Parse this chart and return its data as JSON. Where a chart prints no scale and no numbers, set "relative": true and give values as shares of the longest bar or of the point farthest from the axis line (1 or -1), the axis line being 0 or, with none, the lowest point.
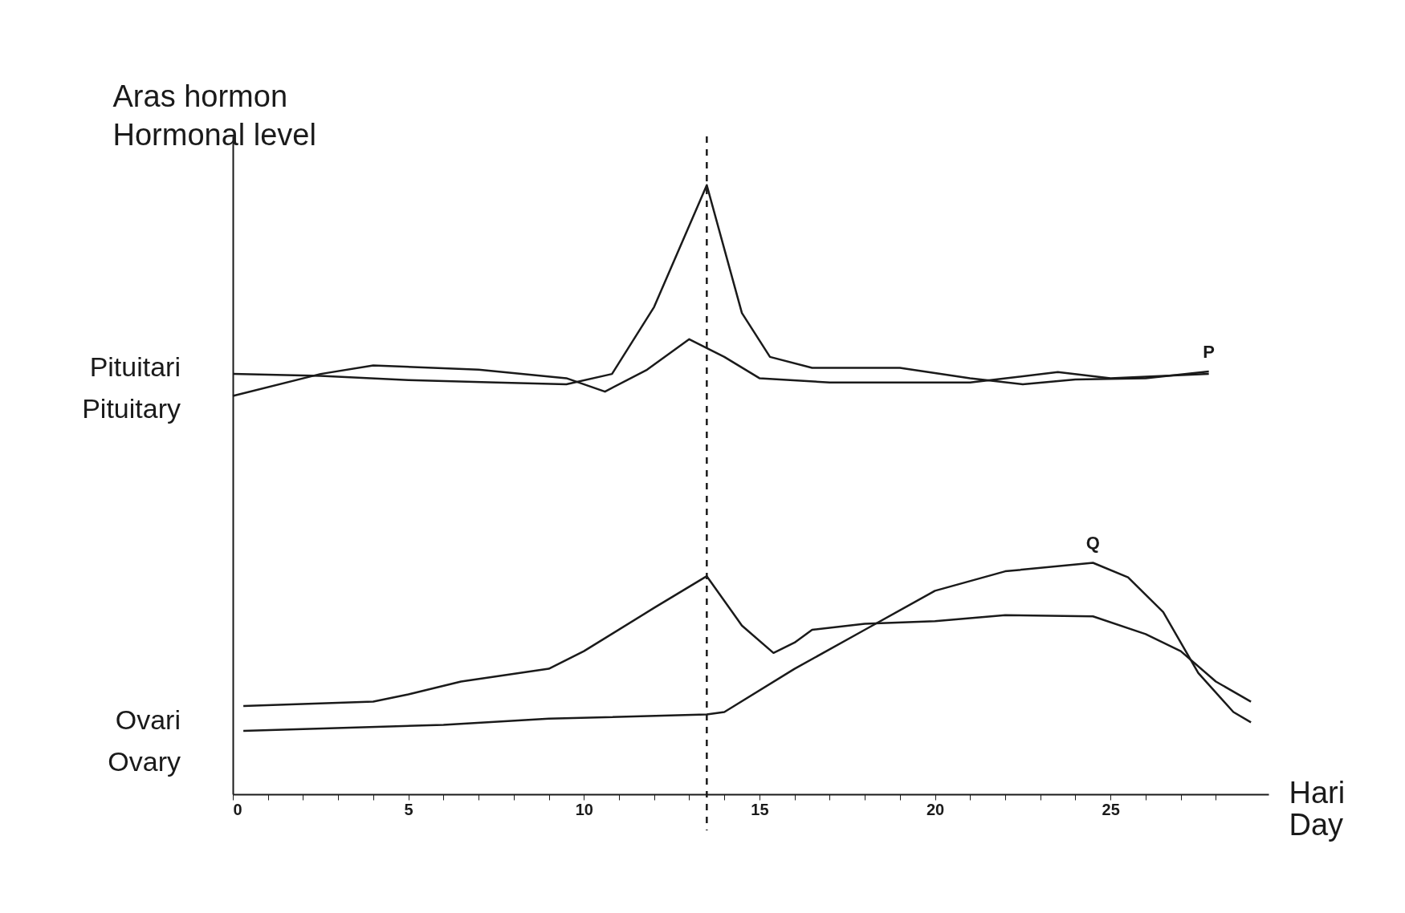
{
  "chart_data": {
    "type": "line",
    "relative": true,
    "ylabel": "Aras hormon\nHormonal level",
    "xlabel": "Hari\nDay",
    "xlim": [
      0,
      29.5
    ],
    "xticks": [
      0,
      {
        "value": 1,
        "label": null
      },
      {
        "value": 2,
        "label": null
      },
      {
        "value": 3,
        "label": null
      },
      {
        "value": 4,
        "label": null
      },
      5,
      {
        "value": 6,
        "label": null
      },
      {
        "value": 7,
        "label": null
      },
      {
        "value": 8,
        "label": null
      },
      {
        "value": 9,
        "label": null
      },
      10,
      {
        "value": 11,
        "label": null
      },
      {
        "value": 12,
        "label": null
      },
      {
        "value": 13,
        "label": null
      },
      {
        "value": 14,
        "label": null
      },
      15,
      {
        "value": 16,
        "label": null
      },
      {
        "value": 17,
        "label": null
      },
      {
        "value": 18,
        "label": null
      },
      {
        "value": 19,
        "label": null
      },
      20,
      {
        "value": 21,
        "label": null
      },
      {
        "value": 22,
        "label": null
      },
      {
        "value": 23,
        "label": null
      },
      {
        "value": 24,
        "label": null
      },
      25,
      {
        "value": 26,
        "label": null
      },
      {
        "value": 27,
        "label": null
      },
      {
        "value": 28,
        "label": null
      }
    ],
    "tick_labels": "x",
    "marker": "none",
    "line_style": "solid",
    "grid": false,
    "legend": false,
    "series": [
      {
        "color": "#1a1a1a",
        "x": [
          0,
          2.5,
          5,
          7.5,
          9.5,
          10.8,
          12,
          13.5,
          14.5,
          15.3,
          16.5,
          19,
          21,
          22.5,
          24,
          26,
          27.8
        ],
        "values": [
          0.69,
          0.687,
          0.68,
          0.676,
          0.673,
          0.69,
          0.8,
          1.0,
          0.79,
          0.718,
          0.7,
          0.7,
          0.683,
          0.673,
          0.681,
          0.683,
          0.694
        ]
      },
      {
        "color": "#1a1a1a",
        "x": [
          0,
          2.5,
          4,
          7,
          9.5,
          10.6,
          11.8,
          13,
          14,
          15,
          17,
          21,
          23.5,
          25,
          27.8
        ],
        "values": [
          0.654,
          0.69,
          0.704,
          0.697,
          0.683,
          0.661,
          0.697,
          0.747,
          0.718,
          0.683,
          0.676,
          0.676,
          0.693,
          0.683,
          0.69
        ]
      },
      {
        "color": "#1a1a1a",
        "x": [
          0.3,
          4,
          5,
          6.5,
          9,
          10,
          12,
          13.5,
          14.5,
          15.4,
          16,
          16.5,
          18,
          20,
          22,
          24.5,
          26,
          27,
          28,
          29
        ],
        "values": [
          0.145,
          0.152,
          0.164,
          0.185,
          0.206,
          0.235,
          0.306,
          0.358,
          0.277,
          0.232,
          0.249,
          0.27,
          0.28,
          0.284,
          0.294,
          0.292,
          0.263,
          0.235,
          0.185,
          0.152
        ]
      },
      {
        "color": "#1a1a1a",
        "x": [
          0.3,
          6,
          9,
          13.5,
          14,
          16,
          18,
          20,
          22,
          24.5,
          25.5,
          26.5,
          27.5,
          28.5,
          29
        ],
        "values": [
          0.104,
          0.114,
          0.124,
          0.131,
          0.135,
          0.206,
          0.27,
          0.334,
          0.366,
          0.38,
          0.356,
          0.299,
          0.199,
          0.135,
          0.118
        ]
      }
    ],
    "ref_lines": [
      {
        "axis": "x",
        "value": 13.5,
        "line_style": "dashed",
        "color": "#1a1a1a"
      }
    ],
    "annotations": [
      {
        "text": "P",
        "x": 27.8,
        "y": 0.694
      },
      {
        "text": "Q",
        "x": 24.5,
        "y": 0.38
      },
      "Pituitari\nPituitary",
      "Ovari\nOvary"
    ]
  }
}
